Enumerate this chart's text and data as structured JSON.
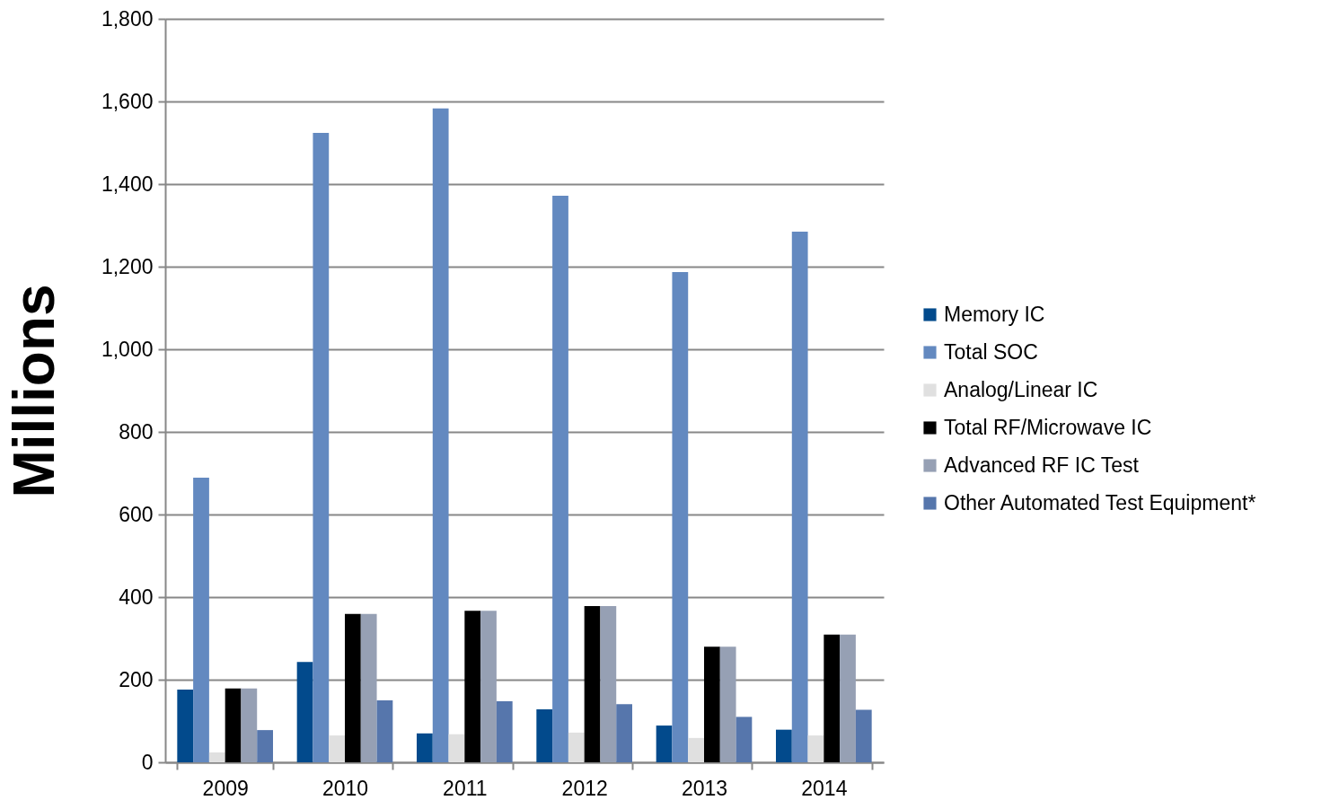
{
  "chart_data": {
    "type": "bar",
    "ylabel": "Millions",
    "categories": [
      "2009",
      "2010",
      "2011",
      "2012",
      "2013",
      "2014"
    ],
    "series": [
      {
        "name": "Memory IC",
        "color": "#024a8c",
        "values": [
          176,
          243,
          70,
          128,
          89,
          79
        ]
      },
      {
        "name": "Total SOC",
        "color": "#6389c0",
        "values": [
          689,
          1524,
          1583,
          1372,
          1187,
          1285
        ]
      },
      {
        "name": "Analog/Linear IC",
        "color": "#e0e0e0",
        "values": [
          24,
          65,
          68,
          72,
          59,
          65
        ]
      },
      {
        "name": "Total RF/Microwave IC",
        "color": "#000000",
        "values": [
          179,
          359,
          367,
          378,
          280,
          309
        ]
      },
      {
        "name": "    Advanced RF IC Test",
        "color": "#96a0b4",
        "values": [
          179,
          359,
          367,
          378,
          280,
          309
        ]
      },
      {
        "name": "Other Automated Test Equipment*",
        "color": "#5676ac",
        "values": [
          78,
          150,
          148,
          141,
          110,
          127
        ]
      }
    ],
    "ylim": [
      0,
      1800
    ],
    "yticks": [
      0,
      200,
      400,
      600,
      800,
      {
        "value": 1000,
        "label": "1,000"
      },
      {
        "value": 1200,
        "label": "1,200"
      },
      {
        "value": 1400,
        "label": "1,400"
      },
      {
        "value": 1600,
        "label": "1,600"
      },
      {
        "value": 1800,
        "label": "1,800"
      }
    ],
    "grid": "y",
    "legend": "right"
  }
}
